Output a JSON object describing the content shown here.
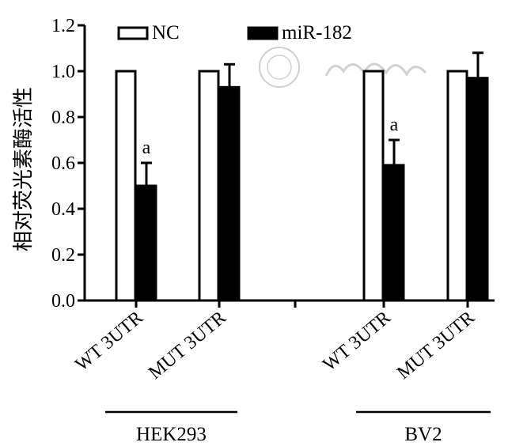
{
  "chart_data": {
    "type": "bar",
    "ylabel": "相对荧光素酶活性",
    "ylim": [
      0,
      1.2
    ],
    "yticks": [
      "0.0",
      "0.2",
      "0.4",
      "0.6",
      "0.8",
      "1.0",
      "1.2"
    ],
    "legend_position": "top-left",
    "grid": false,
    "categories": [
      "WT 3UTR",
      "MUT 3UTR",
      "WT 3UTR",
      "MUT 3UTR"
    ],
    "groups": [
      {
        "label": "HEK293",
        "categories": [
          0,
          1
        ]
      },
      {
        "label": "BV2",
        "categories": [
          2,
          3
        ]
      }
    ],
    "series": [
      {
        "name": "NC",
        "fill": "#ffffff",
        "stroke": "#000000",
        "values": [
          1.0,
          1.0,
          1.0,
          1.0
        ],
        "errors": [
          0,
          0,
          0,
          0
        ]
      },
      {
        "name": "miR-182",
        "fill": "#000000",
        "stroke": "#000000",
        "values": [
          0.5,
          0.93,
          0.59,
          0.97
        ],
        "errors": [
          0.1,
          0.1,
          0.11,
          0.11
        ]
      }
    ],
    "annotations": [
      {
        "series": 1,
        "category": 0,
        "text": "a"
      },
      {
        "series": 1,
        "category": 2,
        "text": "a"
      }
    ]
  },
  "watermark": {
    "text": "中华医学会",
    "description": "seal and calligraphy watermark"
  }
}
